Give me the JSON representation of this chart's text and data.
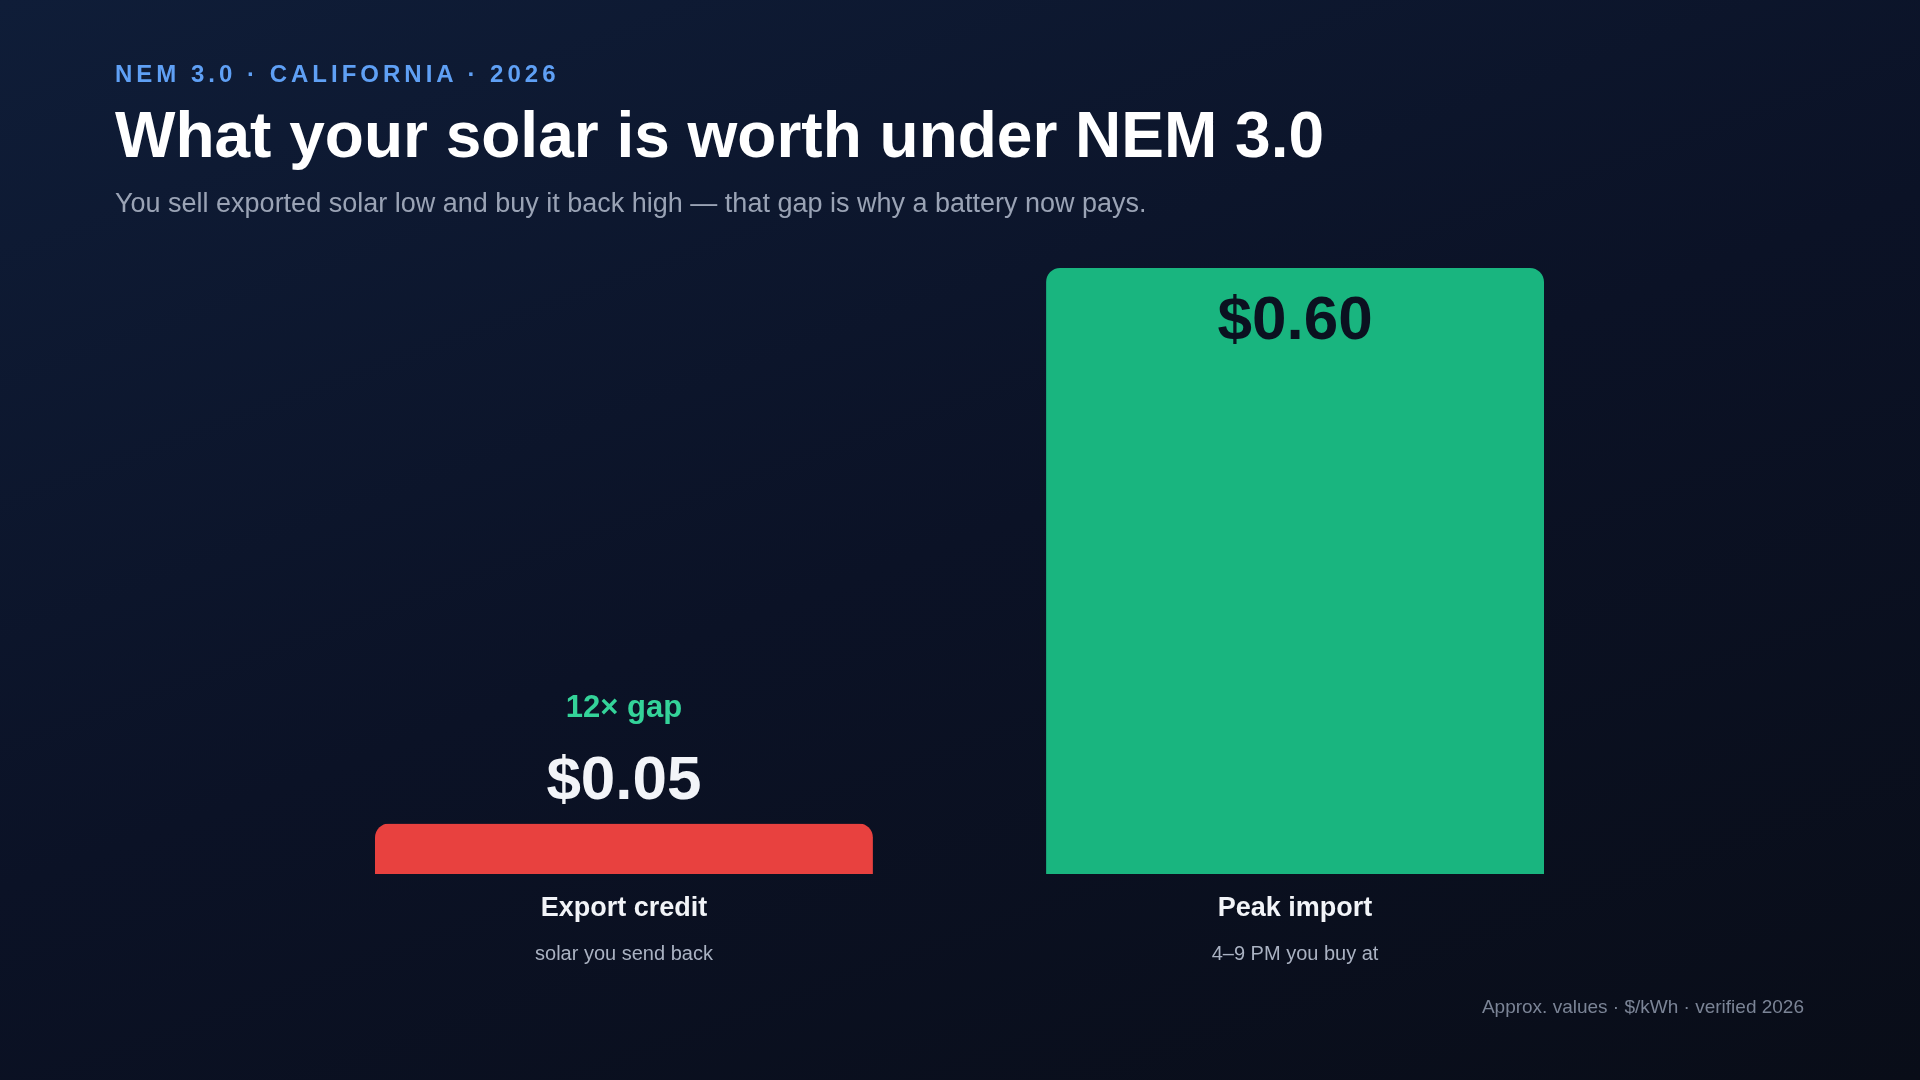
{
  "chart_data": {
    "type": "bar",
    "title": "What your solar is worth under NEM 3.0",
    "subtitle": "You sell exported solar low and buy it back high — that gap is why a battery now pays.",
    "categories": [
      "Export credit",
      "Peak import"
    ],
    "values": [
      0.05,
      0.6
    ],
    "value_labels": [
      "$0.05",
      "$0.60"
    ],
    "colors": [
      "#e8413f",
      "#19b57f"
    ],
    "tick_labels": "x",
    "grid": false,
    "annotations": [
      "NEM 3.0 · CALIFORNIA · 2026",
      "12× gap",
      "solar you send back",
      "4–9 PM you buy at",
      "Approx. values · $/kWh · verified 2026"
    ]
  }
}
